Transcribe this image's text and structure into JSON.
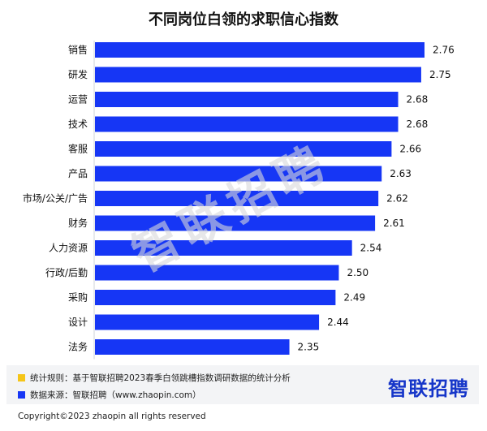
{
  "chart_data": {
    "type": "bar",
    "orientation": "horizontal",
    "title": "不同岗位白领的求职信心指数",
    "categories": [
      "销售",
      "研发",
      "运营",
      "技术",
      "客服",
      "产品",
      "市场/公关/广告",
      "财务",
      "人力资源",
      "行政/后勤",
      "采购",
      "设计",
      "法务"
    ],
    "values": [
      2.76,
      2.75,
      2.68,
      2.68,
      2.66,
      2.63,
      2.62,
      2.61,
      2.54,
      2.5,
      2.49,
      2.44,
      2.35
    ],
    "value_labels": [
      "2.76",
      "2.75",
      "2.68",
      "2.68",
      "2.66",
      "2.63",
      "2.62",
      "2.61",
      "2.54",
      "2.50",
      "2.49",
      "2.44",
      "2.35"
    ],
    "xlim": [
      1.76,
      2.76
    ],
    "bar_color": "#1636f5",
    "grid": false,
    "legend": "none"
  },
  "watermark": "智联招聘",
  "notes": [
    {
      "text": "统计规则：基于智联招聘2023春季白领跳槽指数调研数据的统计分析",
      "color": "#f5c518"
    },
    {
      "text": "数据来源：智联招聘（www.zhaopin.com）",
      "color": "#1636f5"
    }
  ],
  "brand": "智联招聘",
  "copyright": "Copyright©2023 zhaopin all rights reserved",
  "colors": {
    "accent_blue": "#1636f5",
    "brand_blue": "#1636c9",
    "note_yellow": "#f5c518"
  }
}
